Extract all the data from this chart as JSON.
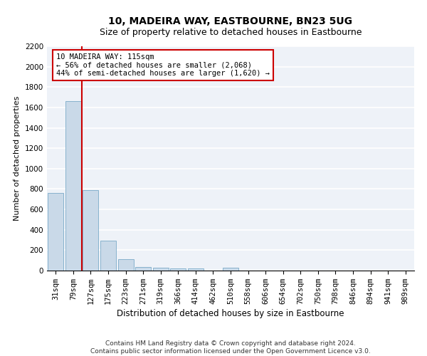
{
  "title": "10, MADEIRA WAY, EASTBOURNE, BN23 5UG",
  "subtitle": "Size of property relative to detached houses in Eastbourne",
  "xlabel": "Distribution of detached houses by size in Eastbourne",
  "ylabel": "Number of detached properties",
  "categories": [
    "31sqm",
    "79sqm",
    "127sqm",
    "175sqm",
    "223sqm",
    "271sqm",
    "319sqm",
    "366sqm",
    "414sqm",
    "462sqm",
    "510sqm",
    "558sqm",
    "606sqm",
    "654sqm",
    "702sqm",
    "750sqm",
    "798sqm",
    "846sqm",
    "894sqm",
    "941sqm",
    "989sqm"
  ],
  "values": [
    760,
    1660,
    790,
    295,
    110,
    38,
    28,
    20,
    20,
    0,
    25,
    0,
    0,
    0,
    0,
    0,
    0,
    0,
    0,
    0,
    0
  ],
  "bar_color": "#c9d9e8",
  "bar_edge_color": "#7aaac8",
  "annotation_text": "10 MADEIRA WAY: 115sqm\n← 56% of detached houses are smaller (2,068)\n44% of semi-detached houses are larger (1,620) →",
  "annotation_box_color": "white",
  "annotation_box_edgecolor": "#cc0000",
  "red_line_color": "#cc0000",
  "ylim": [
    0,
    2200
  ],
  "yticks": [
    0,
    200,
    400,
    600,
    800,
    1000,
    1200,
    1400,
    1600,
    1800,
    2000,
    2200
  ],
  "footer": "Contains HM Land Registry data © Crown copyright and database right 2024.\nContains public sector information licensed under the Open Government Licence v3.0.",
  "background_color": "#eef2f8",
  "grid_color": "white",
  "title_fontsize": 10,
  "subtitle_fontsize": 9,
  "xlabel_fontsize": 8.5,
  "ylabel_fontsize": 8,
  "tick_fontsize": 7.5,
  "annotation_fontsize": 7.5,
  "footer_fontsize": 6.5
}
